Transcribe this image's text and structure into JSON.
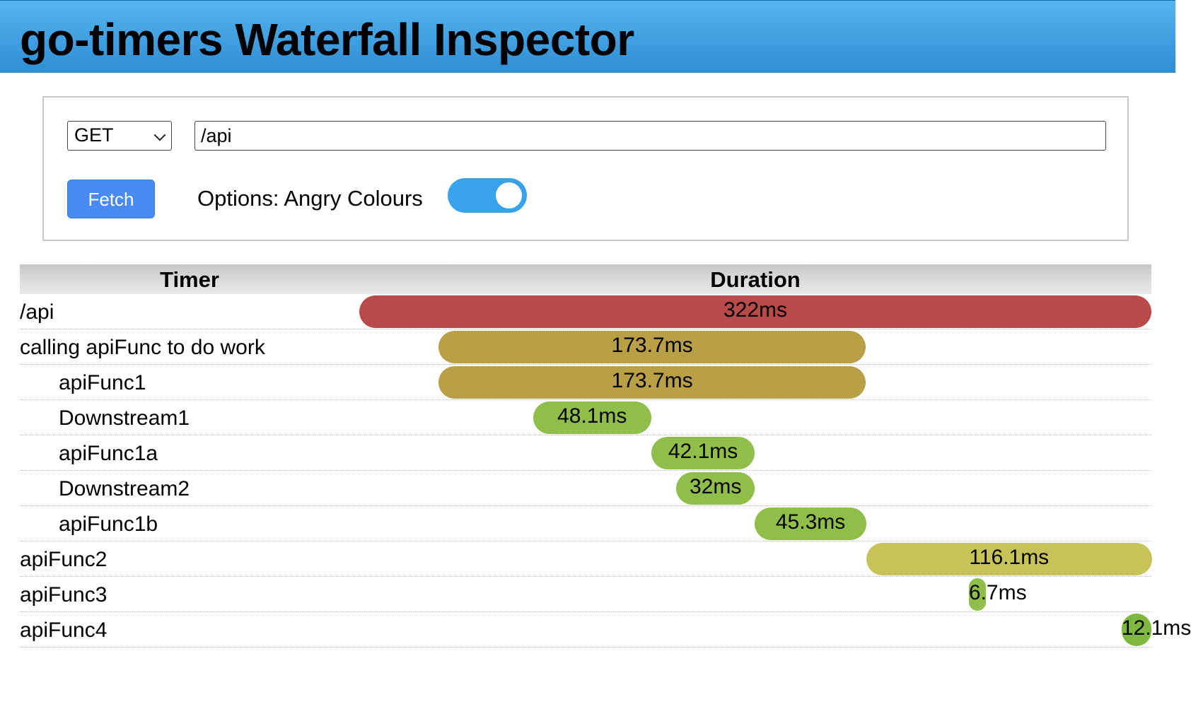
{
  "header": {
    "title": "go-timers Waterfall Inspector"
  },
  "request": {
    "method": "GET",
    "path": "/api",
    "fetch_label": "Fetch",
    "options_label": "Options: Angry Colours",
    "angry_colours_enabled": true
  },
  "table": {
    "col_timer": "Timer",
    "col_duration": "Duration",
    "rows": [
      {
        "name": "/api",
        "indent": 0,
        "duration": "322ms",
        "start_ms": 0,
        "duration_ms": 322,
        "color": "#b84a4a"
      },
      {
        "name": "calling apiFunc to do work",
        "indent": 0,
        "duration": "173.7ms",
        "start_ms": 32.2,
        "duration_ms": 173.7,
        "color": "#b99f45"
      },
      {
        "name": "apiFunc1",
        "indent": 1,
        "duration": "173.7ms",
        "start_ms": 32.2,
        "duration_ms": 173.7,
        "color": "#b99f45"
      },
      {
        "name": "Downstream1",
        "indent": 1,
        "duration": "48.1ms",
        "start_ms": 70.6,
        "duration_ms": 48.1,
        "color": "#8fbf4a"
      },
      {
        "name": "apiFunc1a",
        "indent": 1,
        "duration": "42.1ms",
        "start_ms": 118.7,
        "duration_ms": 42.1,
        "color": "#8fbf4a"
      },
      {
        "name": "Downstream2",
        "indent": 1,
        "duration": "32ms",
        "start_ms": 128.8,
        "duration_ms": 32,
        "color": "#8fbf4a"
      },
      {
        "name": "apiFunc1b",
        "indent": 1,
        "duration": "45.3ms",
        "start_ms": 160.8,
        "duration_ms": 45.3,
        "color": "#8fbf4a"
      },
      {
        "name": "apiFunc2",
        "indent": 0,
        "duration": "116.1ms",
        "start_ms": 206.1,
        "duration_ms": 116.1,
        "color": "#c6c458"
      },
      {
        "name": "apiFunc3",
        "indent": 0,
        "duration": "6.7ms",
        "start_ms": 247.8,
        "duration_ms": 6.7,
        "color": "#8fbf4a"
      },
      {
        "name": "apiFunc4",
        "indent": 0,
        "duration": "12.1ms",
        "start_ms": 309.9,
        "duration_ms": 12.1,
        "color": "#7fb840"
      }
    ]
  }
}
